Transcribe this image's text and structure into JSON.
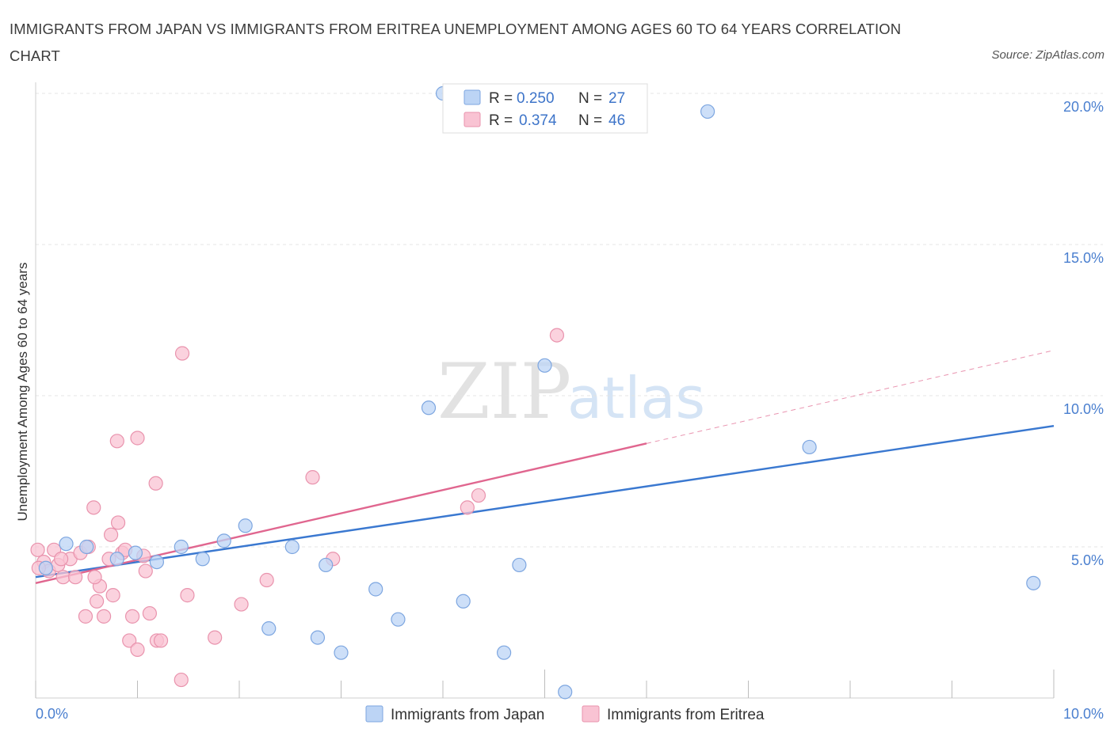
{
  "title": "IMMIGRANTS FROM JAPAN VS IMMIGRANTS FROM ERITREA UNEMPLOYMENT AMONG AGES 60 TO 64 YEARS CORRELATION CHART",
  "source": "Source: ZipAtlas.com",
  "watermark": {
    "zip": "ZIP",
    "atlas": "atlas"
  },
  "colors": {
    "japan_fill": "#bcd4f5",
    "japan_stroke": "#7da6e0",
    "japan_line": "#3a78d0",
    "eritrea_fill": "#f9c3d3",
    "eritrea_stroke": "#e993ad",
    "eritrea_line": "#e0668f",
    "grid": "#e4e4e4",
    "tick_label": "#4a7fcf"
  },
  "legend": {
    "rows": [
      {
        "r_label": "R =",
        "r_value": "0.250",
        "n_label": "N =",
        "n_value": "27"
      },
      {
        "r_label": "R =",
        "r_value": "0.374",
        "n_label": "N =",
        "n_value": "46"
      }
    ]
  },
  "chart_data": {
    "type": "scatter",
    "title": "IMMIGRANTS FROM JAPAN VS IMMIGRANTS FROM ERITREA UNEMPLOYMENT AMONG AGES 60 TO 64 YEARS CORRELATION CHART",
    "xlabel": "",
    "ylabel": "Unemployment Among Ages 60 to 64 years",
    "xlim": [
      0,
      10
    ],
    "ylim": [
      0,
      20
    ],
    "x_tick_labels": [
      "0.0%",
      "10.0%"
    ],
    "y_ticks": [
      5,
      10,
      15,
      20
    ],
    "y_tick_labels": [
      "5.0%",
      "10.0%",
      "15.0%",
      "20.0%"
    ],
    "grid": true,
    "legend_position": "bottom-center",
    "series": [
      {
        "name": "Immigrants from Japan",
        "R": 0.25,
        "N": 27,
        "trend": {
          "x": [
            0.0,
            10.0
          ],
          "y": [
            4.0,
            9.0
          ],
          "solid_until": 10.0
        },
        "points": [
          [
            0.1,
            4.3
          ],
          [
            0.3,
            5.1
          ],
          [
            0.5,
            5.0
          ],
          [
            0.8,
            4.6
          ],
          [
            0.98,
            4.8
          ],
          [
            1.19,
            4.5
          ],
          [
            1.43,
            5.0
          ],
          [
            1.64,
            4.6
          ],
          [
            1.85,
            5.2
          ],
          [
            2.06,
            5.7
          ],
          [
            2.29,
            2.3
          ],
          [
            2.52,
            5.0
          ],
          [
            2.77,
            2.0
          ],
          [
            2.85,
            4.4
          ],
          [
            3.0,
            1.5
          ],
          [
            3.34,
            3.6
          ],
          [
            3.56,
            2.6
          ],
          [
            3.86,
            9.6
          ],
          [
            4.0,
            20.0
          ],
          [
            4.2,
            3.2
          ],
          [
            4.6,
            1.5
          ],
          [
            4.75,
            4.4
          ],
          [
            5.0,
            11.0
          ],
          [
            5.2,
            0.2
          ],
          [
            6.6,
            19.4
          ],
          [
            7.6,
            8.3
          ],
          [
            9.8,
            3.8
          ]
        ]
      },
      {
        "name": "Immigrants from Eritrea",
        "R": 0.374,
        "N": 46,
        "trend": {
          "x": [
            0.0,
            10.0
          ],
          "y": [
            3.8,
            11.5
          ],
          "solid_until": 6.0
        },
        "points": [
          [
            0.02,
            4.9
          ],
          [
            0.08,
            4.5
          ],
          [
            0.13,
            4.2
          ],
          [
            0.18,
            4.9
          ],
          [
            0.22,
            4.4
          ],
          [
            0.27,
            4.0
          ],
          [
            0.34,
            4.6
          ],
          [
            0.39,
            4.0
          ],
          [
            0.44,
            4.8
          ],
          [
            0.49,
            2.7
          ],
          [
            0.52,
            5.0
          ],
          [
            0.57,
            6.3
          ],
          [
            0.6,
            3.2
          ],
          [
            0.63,
            3.7
          ],
          [
            0.67,
            2.7
          ],
          [
            0.72,
            4.6
          ],
          [
            0.74,
            5.4
          ],
          [
            0.76,
            3.4
          ],
          [
            0.8,
            8.5
          ],
          [
            0.81,
            5.8
          ],
          [
            0.85,
            4.8
          ],
          [
            0.88,
            4.9
          ],
          [
            0.92,
            1.9
          ],
          [
            0.95,
            2.7
          ],
          [
            1.0,
            1.6
          ],
          [
            1.0,
            8.6
          ],
          [
            1.06,
            4.7
          ],
          [
            1.08,
            4.2
          ],
          [
            1.12,
            2.8
          ],
          [
            1.18,
            7.1
          ],
          [
            1.19,
            1.9
          ],
          [
            1.23,
            1.9
          ],
          [
            1.43,
            0.6
          ],
          [
            1.44,
            11.4
          ],
          [
            1.49,
            3.4
          ],
          [
            1.76,
            2.0
          ],
          [
            2.02,
            3.1
          ],
          [
            2.27,
            3.9
          ],
          [
            2.72,
            7.3
          ],
          [
            2.92,
            4.6
          ],
          [
            4.24,
            6.3
          ],
          [
            4.35,
            6.7
          ],
          [
            5.12,
            12.0
          ],
          [
            0.03,
            4.3
          ],
          [
            0.25,
            4.6
          ],
          [
            0.58,
            4.0
          ]
        ]
      }
    ]
  },
  "bottom_legend": [
    {
      "label": "Immigrants from Japan"
    },
    {
      "label": "Immigrants from Eritrea"
    }
  ]
}
